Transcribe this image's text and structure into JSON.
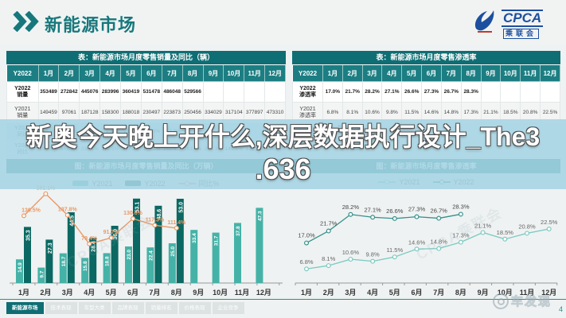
{
  "header": {
    "title": "新能源市场",
    "logo": {
      "name": "CPCA",
      "sub": "乘联会"
    }
  },
  "overlay": {
    "line1": "新奥今天晚上开什么,深层数据执行设计_The3",
    "line2": ".636"
  },
  "months": [
    "1月",
    "2月",
    "3月",
    "4月",
    "5月",
    "6月",
    "7月",
    "8月",
    "9月",
    "10月",
    "11月",
    "12月"
  ],
  "left_table": {
    "title": "表：新能源市场月度零售销量及同比（辆）",
    "corner": "Y2022",
    "rows": [
      {
        "label": [
          "Y2022",
          "销量"
        ],
        "style": "qty-2022",
        "values": [
          "353489",
          "272842",
          "445076",
          "283996",
          "360419",
          "531478",
          "486048",
          "529566",
          "",
          "",
          "",
          ""
        ]
      },
      {
        "label": [
          "Y2021",
          "销量"
        ],
        "style": "qty-2021",
        "values": [
          "149459",
          "97061",
          "187128",
          "158300",
          "188018",
          "230497",
          "223873",
          "250456",
          "334029",
          "317104",
          "377897",
          "473310"
        ]
      },
      {
        "label": [
          "Y2022",
          "同比"
        ],
        "style": "yoy",
        "values": [
          "136.5%",
          "181.1%",
          "137.8%",
          "79.4%",
          "91.7%",
          "130.6%",
          "117.3%",
          "111.4%",
          "",
          "",
          "",
          ""
        ]
      },
      {
        "label": [
          "Y2021",
          "同比"
        ],
        "style": "yoy2",
        "values": [
          "280.5%",
          "641.1%",
          "239.6%",
          "192.9%",
          "177.2%",
          "171.2%",
          "169.4%",
          "181.4%",
          "202.1%",
          "141.1%",
          "122.3%",
          "128.8%"
        ]
      }
    ]
  },
  "right_table": {
    "title": "表：新能源市场月度零售渗透率",
    "corner": "Y2022",
    "rows": [
      {
        "label": [
          "Y2022",
          "渗透率"
        ],
        "style": "qty-2022",
        "values": [
          "17.0%",
          "21.7%",
          "28.2%",
          "27.1%",
          "26.6%",
          "27.3%",
          "26.7%",
          "28.3%",
          "",
          "",
          "",
          ""
        ]
      },
      {
        "label": [
          "Y2021",
          "渗透率"
        ],
        "style": "qty-2021",
        "values": [
          "6.8%",
          "8.1%",
          "10.6%",
          "9.8%",
          "11.5%",
          "14.6%",
          "14.8%",
          "17.3%",
          "21.1%",
          "18.5%",
          "20.8%",
          "22.5%"
        ]
      }
    ]
  },
  "mini_caption": "新能源市场",
  "chart_data": [
    {
      "type": "bar",
      "title": "图：新能源市场月度零售销量及同比（万辆）",
      "categories": [
        "1月",
        "2月",
        "3月",
        "4月",
        "5月",
        "6月",
        "7月",
        "8月",
        "9月",
        "10月",
        "11月",
        "12月"
      ],
      "series": [
        {
          "name": "Y2021",
          "type": "bar",
          "values": [
            14.9,
            9.7,
            18.7,
            15.8,
            18.8,
            23.0,
            22.4,
            25.0,
            33.4,
            31.7,
            37.8,
            47.3
          ]
        },
        {
          "name": "Y2022",
          "type": "bar",
          "values": [
            35.3,
            27.3,
            44.5,
            28.4,
            36.0,
            53.1,
            48.6,
            53.0,
            null,
            null,
            null,
            null
          ]
        },
        {
          "name": "同比%",
          "type": "line",
          "values": [
            136.5,
            181.1,
            137.8,
            79.4,
            91.7,
            130.6,
            117.3,
            111.4,
            null,
            null,
            null,
            null
          ]
        }
      ],
      "legend_position": "top",
      "grid": false
    },
    {
      "type": "line",
      "title": "图：新能源市场月度零售渗透率",
      "categories": [
        "1月",
        "2月",
        "3月",
        "4月",
        "5月",
        "6月",
        "7月",
        "8月",
        "9月",
        "10月",
        "11月",
        "12月"
      ],
      "series": [
        {
          "name": "Y2021",
          "values": [
            6.8,
            8.1,
            10.6,
            9.8,
            11.5,
            14.6,
            14.8,
            17.3,
            21.1,
            18.5,
            20.8,
            22.5
          ]
        },
        {
          "name": "Y2022",
          "values": [
            17.0,
            21.7,
            28.2,
            27.1,
            26.6,
            27.3,
            26.7,
            28.3,
            null,
            null,
            null,
            null
          ]
        }
      ],
      "legend_position": "top",
      "grid": false
    }
  ],
  "footer": {
    "tabs": [
      {
        "label": "新能源市场",
        "active": true
      },
      {
        "label": "技术表现",
        "active": false
      },
      {
        "label": "车型大类",
        "active": false
      },
      {
        "label": "品牌表现",
        "active": false
      },
      {
        "label": "销量排名",
        "active": false
      },
      {
        "label": "价格表现",
        "active": false
      },
      {
        "label": "企业竞争",
        "active": false
      }
    ],
    "page": "4",
    "watermark": "车发现"
  },
  "decor": {
    "cpca_watermark": "CPCA乘联会"
  },
  "colors": {
    "accent_teal": "#17787c",
    "table_header": "#1c7e82",
    "title_bar": "#0e6e74",
    "bar_2021": "#45b2a7",
    "bar_2022": "#0b6862",
    "yoy_line": "#e89a68",
    "line_2021": "#7ccac3",
    "line_2022": "#35908b",
    "band": "#a6d4e4",
    "logo_blue": "#1c4f9e"
  }
}
